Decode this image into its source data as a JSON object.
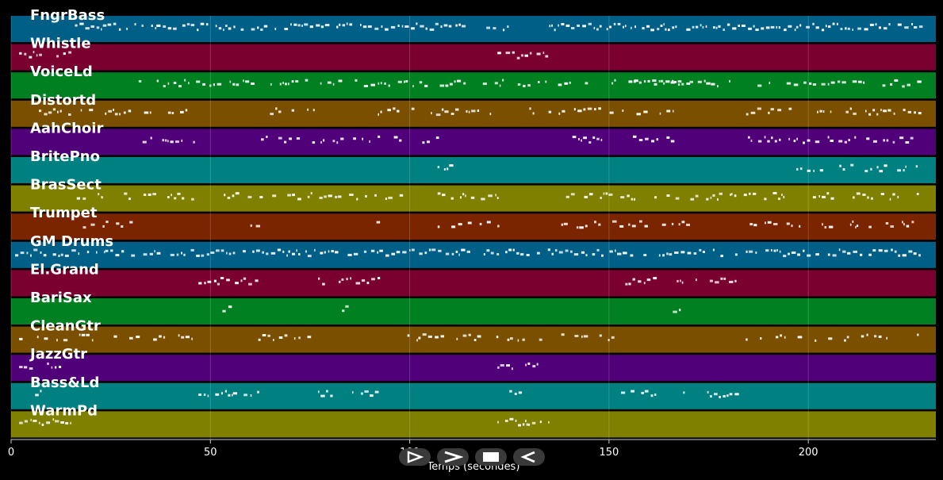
{
  "chart_data": {
    "type": "piano-roll",
    "xlabel": "Temps (secondes)",
    "xlim": [
      0,
      232
    ],
    "xticks": [
      0,
      50,
      100,
      150,
      200
    ],
    "grid": true,
    "tracks": [
      {
        "name": "FngrBass",
        "color": "#005f86",
        "segments": [
          [
            16,
            125
          ],
          [
            135,
            228
          ]
        ],
        "density": 0.85,
        "seed": 11
      },
      {
        "name": "Whistle",
        "color": "#7a0030",
        "segments": [
          [
            2,
            15
          ],
          [
            122,
            135
          ]
        ],
        "density": 0.9,
        "seed": 12
      },
      {
        "name": "VoiceLd",
        "color": "#008021",
        "segments": [
          [
            32,
            175
          ],
          [
            153,
            228
          ]
        ],
        "density": 0.55,
        "seed": 13
      },
      {
        "name": "Distortd",
        "color": "#7a5000",
        "segments": [
          [
            6,
            46
          ],
          [
            62,
            77
          ],
          [
            92,
            122
          ],
          [
            130,
            170
          ],
          [
            183,
            228
          ]
        ],
        "density": 0.6,
        "seed": 14
      },
      {
        "name": "AahChoir",
        "color": "#500078",
        "segments": [
          [
            32,
            46
          ],
          [
            62,
            110
          ],
          [
            138,
            150
          ],
          [
            156,
            167
          ],
          [
            183,
            228
          ]
        ],
        "density": 0.45,
        "seed": 15
      },
      {
        "name": "BritePno",
        "color": "#008080",
        "segments": [
          [
            106,
            110
          ],
          [
            114,
            118
          ],
          [
            197,
            228
          ]
        ],
        "density": 0.55,
        "seed": 16
      },
      {
        "name": "BrasSect",
        "color": "#808000",
        "segments": [
          [
            15,
            46
          ],
          [
            52,
            98
          ],
          [
            107,
            122
          ],
          [
            138,
            198
          ],
          [
            198,
            228
          ]
        ],
        "density": 0.5,
        "seed": 17
      },
      {
        "name": "Trumpet",
        "color": "#7a2500",
        "segments": [
          [
            18,
            31
          ],
          [
            60,
            62
          ],
          [
            90,
            92
          ],
          [
            107,
            122
          ],
          [
            138,
            170
          ],
          [
            183,
            228
          ]
        ],
        "density": 0.6,
        "seed": 18
      },
      {
        "name": "GM Drums",
        "color": "#005f86",
        "segments": [
          [
            1,
            228
          ]
        ],
        "density": 0.8,
        "seed": 19
      },
      {
        "name": "El.Grand",
        "color": "#7a0030",
        "segments": [
          [
            47,
            62
          ],
          [
            77,
            92
          ],
          [
            153,
            163
          ],
          [
            167,
            182
          ]
        ],
        "density": 0.8,
        "seed": 20
      },
      {
        "name": "BariSax",
        "color": "#008021",
        "segments": [
          [
            53,
            55
          ],
          [
            83,
            85
          ],
          [
            166,
            168
          ]
        ],
        "density": 0.8,
        "seed": 21
      },
      {
        "name": "CleanGtr",
        "color": "#7a5000",
        "segments": [
          [
            2,
            46
          ],
          [
            62,
            77
          ],
          [
            92,
            135
          ],
          [
            138,
            152
          ],
          [
            183,
            228
          ]
        ],
        "density": 0.4,
        "seed": 22
      },
      {
        "name": "JazzGtr",
        "color": "#500078",
        "segments": [
          [
            2,
            5
          ],
          [
            9,
            12
          ],
          [
            122,
            126
          ],
          [
            129,
            132
          ]
        ],
        "density": 0.95,
        "seed": 23
      },
      {
        "name": "Bass&Ld",
        "color": "#008080",
        "segments": [
          [
            6,
            8
          ],
          [
            47,
            62
          ],
          [
            77,
            92
          ],
          [
            125,
            128
          ],
          [
            153,
            163
          ],
          [
            167,
            182
          ]
        ],
        "density": 0.55,
        "seed": 24
      },
      {
        "name": "WarmPd",
        "color": "#808000",
        "segments": [
          [
            2,
            15
          ],
          [
            122,
            135
          ]
        ],
        "density": 0.95,
        "seed": 25
      }
    ]
  },
  "controls": {
    "buttons": [
      {
        "name": "play-button",
        "icon": "play-icon"
      },
      {
        "name": "fast-forward-button",
        "icon": "fast-forward-icon"
      },
      {
        "name": "stop-button",
        "icon": "stop-icon"
      },
      {
        "name": "rewind-button",
        "icon": "rewind-icon"
      }
    ]
  }
}
